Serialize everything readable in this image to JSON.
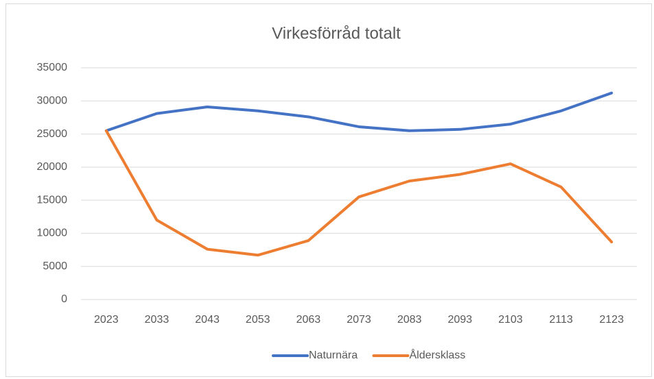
{
  "chart_data": {
    "type": "line",
    "title": "Virkesförråd totalt",
    "categories": [
      "2023",
      "2033",
      "2043",
      "2053",
      "2063",
      "2073",
      "2083",
      "2093",
      "2103",
      "2113",
      "2123"
    ],
    "series": [
      {
        "name": "Naturnära",
        "color": "#4472c4",
        "values": [
          25500,
          28100,
          29100,
          28500,
          27600,
          26100,
          25500,
          25700,
          26500,
          28500,
          31200
        ]
      },
      {
        "name": "Åldersklass",
        "color": "#ed7d31",
        "values": [
          25500,
          12000,
          7600,
          6700,
          8900,
          15500,
          17900,
          18900,
          20500,
          17000,
          8700
        ]
      }
    ],
    "ylim": [
      0,
      35000
    ],
    "yticks": [
      0,
      5000,
      10000,
      15000,
      20000,
      25000,
      30000,
      35000
    ],
    "grid": true,
    "legend": "bottom"
  }
}
